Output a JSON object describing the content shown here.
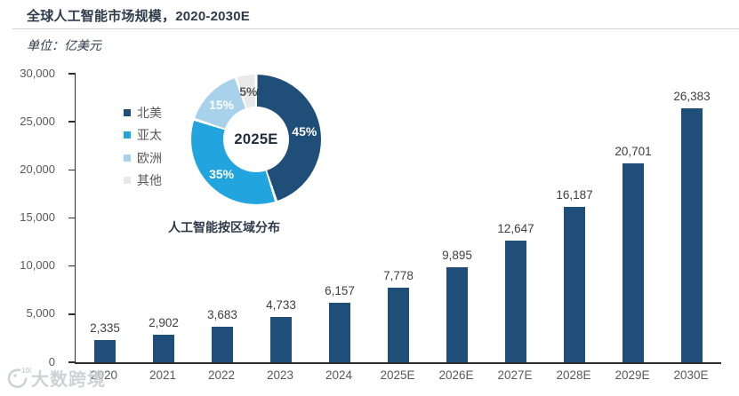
{
  "page": {
    "title": "全球人工智能市场规模，2020-2030E",
    "unit_label": "单位：亿美元",
    "watermark": {
      "logo": "100",
      "text": "大数跨境"
    }
  },
  "colors": {
    "bar": "#1F4E79",
    "axis": "#2E2E2E",
    "axis_text": "#595959",
    "value_text": "#3F3F3F",
    "title_text": "#2E3B4A"
  },
  "chart_data": [
    {
      "type": "bar",
      "title": "全球人工智能市场规模，2020-2030E",
      "ylabel": "亿美元",
      "categories": [
        "2020",
        "2021",
        "2022",
        "2023",
        "2024",
        "2025E",
        "2026E",
        "2027E",
        "2028E",
        "2029E",
        "2030E"
      ],
      "values": [
        2335,
        2902,
        3683,
        4733,
        6157,
        7778,
        9895,
        12647,
        16187,
        20701,
        26383
      ],
      "value_labels": [
        "2,335",
        "2,902",
        "3,683",
        "4,733",
        "6,157",
        "7,778",
        "9,895",
        "12,647",
        "16,187",
        "20,701",
        "26,383"
      ],
      "ylim": [
        0,
        30000
      ],
      "ytick_interval": 5000,
      "ytick_labels": [
        "30,000",
        "25,000",
        "20,000",
        "15,000",
        "10,000",
        "5,000",
        "0"
      ],
      "grid": false,
      "legend_position": "none",
      "bar_color": "#1F4E79"
    },
    {
      "type": "pie",
      "subtype": "donut",
      "title": "人工智能按区域分布",
      "center_label": "2025E",
      "categories": [
        "北美",
        "亚太",
        "欧洲",
        "其他"
      ],
      "values": [
        45,
        35,
        15,
        5
      ],
      "labels": [
        "45%",
        "35%",
        "15%",
        "5%"
      ],
      "colors": [
        "#1F4E79",
        "#22A5DF",
        "#A8D2EC",
        "#E9E9E9"
      ],
      "label_colors": [
        "#FFFFFF",
        "#FFFFFF",
        "#FFFFFF",
        "#595959"
      ],
      "legend_position": "left",
      "start_angle": "top",
      "direction": "clockwise"
    }
  ]
}
